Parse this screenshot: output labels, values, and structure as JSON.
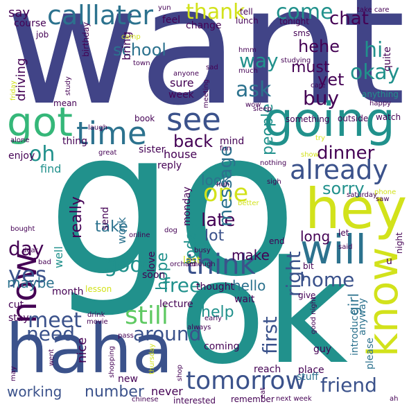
{
  "words": [
    {
      "text": "want",
      "color": "#414487",
      "rotated": false
    },
    {
      "text": "go",
      "color": "#21918c",
      "rotated": false
    },
    {
      "text": "ok",
      "color": "#21918c",
      "rotated": false
    },
    {
      "text": "haha",
      "color": "#3b528b",
      "rotated": false
    },
    {
      "text": "hey",
      "color": "#d2e21b",
      "rotated": false
    },
    {
      "text": "know",
      "color": "#d2e21b",
      "rotated": true
    },
    {
      "text": "going",
      "color": "#21918c",
      "rotated": false
    },
    {
      "text": "will",
      "color": "#2c728e",
      "rotated": false
    },
    {
      "text": "now",
      "color": "#440154",
      "rotated": true
    },
    {
      "text": "got",
      "color": "#35b779",
      "rotated": false
    },
    {
      "text": "time",
      "color": "#2c728e",
      "rotated": false
    },
    {
      "text": "see",
      "color": "#3b528b",
      "rotated": false
    },
    {
      "text": "already",
      "color": "#3b528b",
      "rotated": false
    },
    {
      "text": "tomorrow",
      "color": "#3b528b",
      "rotated": false
    },
    {
      "text": "think",
      "color": "#3b528b",
      "rotated": false
    },
    {
      "text": "calllater",
      "color": "#2c728e",
      "rotated": false
    },
    {
      "text": "still",
      "color": "#5ec962",
      "rotated": false
    },
    {
      "text": "friend",
      "color": "#3b528b",
      "rotated": false
    },
    {
      "text": "good",
      "color": "#21918c",
      "rotated": false
    },
    {
      "text": "one",
      "color": "#d2e21b",
      "rotated": false
    },
    {
      "text": "yes",
      "color": "#3b528b",
      "rotated": false
    },
    {
      "text": "meet",
      "color": "#3b528b",
      "rotated": false
    },
    {
      "text": "need",
      "color": "#3b528b",
      "rotated": false
    },
    {
      "text": "around",
      "color": "#3b528b",
      "rotated": false
    },
    {
      "text": "come",
      "color": "#21918c",
      "rotated": false
    },
    {
      "text": "hi",
      "color": "#21918c",
      "rotated": false
    },
    {
      "text": "okay",
      "color": "#21918c",
      "rotated": false
    },
    {
      "text": "thank",
      "color": "#d2e21b",
      "rotated": false
    },
    {
      "text": "oh",
      "color": "#21918c",
      "rotated": false
    },
    {
      "text": "day",
      "color": "#440154",
      "rotated": false
    },
    {
      "text": "free",
      "color": "#21918c",
      "rotated": false
    },
    {
      "text": "right",
      "color": "#3b528b",
      "rotated": true
    },
    {
      "text": "first",
      "color": "#3b528b",
      "rotated": true
    },
    {
      "text": "home",
      "color": "#3b528b",
      "rotated": false
    },
    {
      "text": "dinner",
      "color": "#440154",
      "rotated": false
    },
    {
      "text": "sorry",
      "color": "#21918c",
      "rotated": false
    },
    {
      "text": "late",
      "color": "#440154",
      "rotated": false
    },
    {
      "text": "back",
      "color": "#440154",
      "rotated": false
    },
    {
      "text": "buy",
      "color": "#440154",
      "rotated": false
    },
    {
      "text": "ask",
      "color": "#2c728e",
      "rotated": false
    },
    {
      "text": "way",
      "color": "#21918c",
      "rotated": false
    },
    {
      "text": "chat",
      "color": "#440154",
      "rotated": false
    },
    {
      "text": "hehe",
      "color": "#440154",
      "rotated": false
    },
    {
      "text": "school",
      "color": "#2c728e",
      "rotated": false
    },
    {
      "text": "message",
      "color": "#2c728e",
      "rotated": true
    },
    {
      "text": "must",
      "color": "#440154",
      "rotated": false
    },
    {
      "text": "yet",
      "color": "#440154",
      "rotated": false
    },
    {
      "text": "people",
      "color": "#21918c",
      "rotated": true
    },
    {
      "text": "today",
      "color": "#21918c",
      "rotated": true
    },
    {
      "text": "look",
      "color": "#2c728e",
      "rotated": false
    },
    {
      "text": "really",
      "color": "#440154",
      "rotated": true
    },
    {
      "text": "take",
      "color": "#2c728e",
      "rotated": false
    },
    {
      "text": "lot",
      "color": "#3b528b",
      "rotated": false
    },
    {
      "text": "maybe",
      "color": "#2c728e",
      "rotated": false
    },
    {
      "text": "help",
      "color": "#21918c",
      "rotated": false
    },
    {
      "text": "girl",
      "color": "#2c728e",
      "rotated": true
    },
    {
      "text": "number",
      "color": "#3b528b",
      "rotated": false
    },
    {
      "text": "working",
      "color": "#3b528b",
      "rotated": false
    },
    {
      "text": "hello",
      "color": "#2c728e",
      "rotated": false
    },
    {
      "text": "make",
      "color": "#440154",
      "rotated": false
    },
    {
      "text": "long",
      "color": "#440154",
      "rotated": false
    },
    {
      "text": "hope",
      "color": "#21918c",
      "rotated": true
    },
    {
      "text": "say",
      "color": "#440154",
      "rotated": false
    },
    {
      "text": "driving",
      "color": "#440154",
      "rotated": true
    },
    {
      "text": "bring",
      "color": "#440154",
      "rotated": true
    },
    {
      "text": "sure",
      "color": "#440154",
      "rotated": false
    },
    {
      "text": "week",
      "color": "#440154",
      "rotated": false
    },
    {
      "text": "house",
      "color": "#440154",
      "rotated": false
    },
    {
      "text": "work",
      "color": "#2c728e",
      "rotated": true
    },
    {
      "text": "find",
      "color": "#21918c",
      "rotated": false
    },
    {
      "text": "enjoy",
      "color": "#440154",
      "rotated": false
    },
    {
      "text": "thing",
      "color": "#440154",
      "rotated": false
    },
    {
      "text": "sister",
      "color": "#440154",
      "rotated": false
    },
    {
      "text": "reply",
      "color": "#440154",
      "rotated": false
    },
    {
      "text": "send",
      "color": "#440154",
      "rotated": true
    },
    {
      "text": "mind",
      "color": "#440154",
      "rotated": false
    },
    {
      "text": "well",
      "color": "#21918c",
      "rotated": true
    },
    {
      "text": "love",
      "color": "#440154",
      "rotated": true
    },
    {
      "text": "soon",
      "color": "#440154",
      "rotated": false
    },
    {
      "text": "nice",
      "color": "#440154",
      "rotated": true
    },
    {
      "text": "month",
      "color": "#440154",
      "rotated": false
    },
    {
      "text": "cut",
      "color": "#440154",
      "rotated": false
    },
    {
      "text": "stay",
      "color": "#440154",
      "rotated": false
    },
    {
      "text": "lecture",
      "color": "#440154",
      "rotated": false
    },
    {
      "text": "thought",
      "color": "#440154",
      "rotated": false
    },
    {
      "text": "wait",
      "color": "#440154",
      "rotated": false
    },
    {
      "text": "coming",
      "color": "#440154",
      "rotated": false
    },
    {
      "text": "never",
      "color": "#440154",
      "rotated": false
    },
    {
      "text": "new",
      "color": "#440154",
      "rotated": false
    },
    {
      "text": "guy",
      "color": "#440154",
      "rotated": false
    },
    {
      "text": "place",
      "color": "#440154",
      "rotated": false
    },
    {
      "text": "stuff",
      "color": "#2c728e",
      "rotated": false
    },
    {
      "text": "reach",
      "color": "#440154",
      "rotated": false
    },
    {
      "text": "please",
      "color": "#2c728e",
      "rotated": true
    },
    {
      "text": "anyway",
      "color": "#2c728e",
      "rotated": true
    },
    {
      "text": "introduce",
      "color": "#2c728e",
      "rotated": true
    },
    {
      "text": "tell",
      "color": "#440154",
      "rotated": false
    },
    {
      "text": "lunch",
      "color": "#440154",
      "rotated": false
    },
    {
      "text": "tonight",
      "color": "#440154",
      "rotated": false
    },
    {
      "text": "sms",
      "color": "#440154",
      "rotated": false
    },
    {
      "text": "quite",
      "color": "#440154",
      "rotated": true
    },
    {
      "text": "feel",
      "color": "#440154",
      "rotated": false
    },
    {
      "text": "change",
      "color": "#440154",
      "rotated": false
    },
    {
      "text": "course",
      "color": "#440154",
      "rotated": false
    },
    {
      "text": "job",
      "color": "#440154",
      "rotated": false
    },
    {
      "text": "birthday",
      "color": "#440154",
      "rotated": true
    },
    {
      "text": "yun",
      "color": "#440154",
      "rotated": false
    },
    {
      "text": "take care",
      "color": "#440154",
      "rotated": false
    },
    {
      "text": "camp",
      "color": "#d2e21b",
      "rotated": false
    },
    {
      "text": "hmm",
      "color": "#440154",
      "rotated": false
    },
    {
      "text": "town",
      "color": "#440154",
      "rotated": false
    },
    {
      "text": "studying",
      "color": "#440154",
      "rotated": false
    },
    {
      "text": "study",
      "color": "#440154",
      "rotated": true
    },
    {
      "text": "friday",
      "color": "#d2e21b",
      "rotated": true
    },
    {
      "text": "anyone",
      "color": "#440154",
      "rotated": false
    },
    {
      "text": "sad",
      "color": "#440154",
      "rotated": false
    },
    {
      "text": "much",
      "color": "#440154",
      "rotated": false
    },
    {
      "text": "care",
      "color": "#440154",
      "rotated": false
    },
    {
      "text": "anything",
      "color": "#21918c",
      "rotated": false
    },
    {
      "text": "happy",
      "color": "#440154",
      "rotated": false
    },
    {
      "text": "mean",
      "color": "#440154",
      "rotated": false
    },
    {
      "text": "meeting",
      "color": "#440154",
      "rotated": true
    },
    {
      "text": "wow",
      "color": "#440154",
      "rotated": false
    },
    {
      "text": "sleep",
      "color": "#440154",
      "rotated": false
    },
    {
      "text": "something",
      "color": "#440154",
      "rotated": false
    },
    {
      "text": "watch",
      "color": "#440154",
      "rotated": false
    },
    {
      "text": "book",
      "color": "#440154",
      "rotated": false
    },
    {
      "text": "outside",
      "color": "#440154",
      "rotated": false
    },
    {
      "text": "laugh",
      "color": "#440154",
      "rotated": false
    },
    {
      "text": "alone",
      "color": "#440154",
      "rotated": false
    },
    {
      "text": "great",
      "color": "#440154",
      "rotated": false
    },
    {
      "text": "fun",
      "color": "#440154",
      "rotated": false
    },
    {
      "text": "try",
      "color": "#d2e21b",
      "rotated": false
    },
    {
      "text": "show",
      "color": "#d2e21b",
      "rotated": false
    },
    {
      "text": "nothing",
      "color": "#440154",
      "rotated": false
    },
    {
      "text": "huh",
      "color": "#440154",
      "rotated": false
    },
    {
      "text": "sigh",
      "color": "#440154",
      "rotated": false
    },
    {
      "text": "phone",
      "color": "#d2e21b",
      "rotated": false
    },
    {
      "text": "saturday",
      "color": "#440154",
      "rotated": false
    },
    {
      "text": "saw",
      "color": "#440154",
      "rotated": false
    },
    {
      "text": "monday",
      "color": "#440154",
      "rotated": true
    },
    {
      "text": "better",
      "color": "#d2e21b",
      "rotated": false
    },
    {
      "text": "bought",
      "color": "#440154",
      "rotated": false
    },
    {
      "text": "online",
      "color": "#440154",
      "rotated": false
    },
    {
      "text": "dog",
      "color": "#440154",
      "rotated": false
    },
    {
      "text": "let",
      "color": "#440154",
      "rotated": false
    },
    {
      "text": "end",
      "color": "#440154",
      "rotated": false
    },
    {
      "text": "night",
      "color": "#440154",
      "rotated": true
    },
    {
      "text": "busy",
      "color": "#440154",
      "rotated": false
    },
    {
      "text": "said",
      "color": "#440154",
      "rotated": false
    },
    {
      "text": "dear",
      "color": "#440154",
      "rotated": false
    },
    {
      "text": "bad",
      "color": "#440154",
      "rotated": false
    },
    {
      "text": "last",
      "color": "#d2e21b",
      "rotated": false
    },
    {
      "text": "enough",
      "color": "#440154",
      "rotated": false
    },
    {
      "text": "u",
      "color": "#440154",
      "rotated": false
    },
    {
      "text": "lesson",
      "color": "#d2e21b",
      "rotated": false
    },
    {
      "text": "orchard",
      "color": "#440154",
      "rotated": false
    },
    {
      "text": "bit",
      "color": "#440154",
      "rotated": false
    },
    {
      "text": "give",
      "color": "#440154",
      "rotated": false
    },
    {
      "text": "drink",
      "color": "#440154",
      "rotated": false
    },
    {
      "text": "movie",
      "color": "#440154",
      "rotated": false
    },
    {
      "text": "early",
      "color": "#440154",
      "rotated": false
    },
    {
      "text": "good night",
      "color": "#440154",
      "rotated": true
    },
    {
      "text": "always",
      "color": "#440154",
      "rotated": false
    },
    {
      "text": "pass",
      "color": "#440154",
      "rotated": false
    },
    {
      "text": "went",
      "color": "#440154",
      "rotated": true
    },
    {
      "text": "may",
      "color": "#440154",
      "rotated": true
    },
    {
      "text": "shopping",
      "color": "#440154",
      "rotated": true
    },
    {
      "text": "thursday",
      "color": "#d2e21b",
      "rotated": true
    },
    {
      "text": "shop",
      "color": "#440154",
      "rotated": true
    },
    {
      "text": "chinese",
      "color": "#440154",
      "rotated": false
    },
    {
      "text": "interested",
      "color": "#440154",
      "rotated": false
    },
    {
      "text": "remember",
      "color": "#440154",
      "rotated": false
    },
    {
      "text": "eat",
      "color": "#440154",
      "rotated": true
    },
    {
      "text": "next week",
      "color": "#440154",
      "rotated": false
    },
    {
      "text": "ah",
      "color": "#440154",
      "rotated": false
    }
  ]
}
